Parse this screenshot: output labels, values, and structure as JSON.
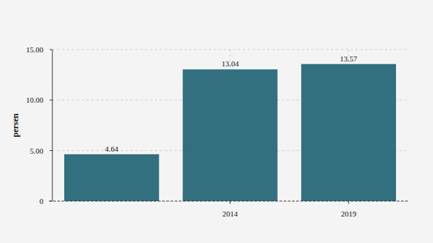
{
  "chart_data": {
    "type": "bar",
    "y_label": "persen",
    "categories": [
      null,
      "2014",
      "2019"
    ],
    "values": [
      4.64,
      13.04,
      13.57
    ],
    "color": "#32707f",
    "ylim": [
      0,
      15
    ],
    "yticks": [
      0,
      {
        "value": 5,
        "label": "5.00"
      },
      {
        "value": 10,
        "label": "10.00"
      },
      {
        "value": 15,
        "label": "15.00"
      }
    ],
    "grid": true,
    "data_labels": true
  }
}
